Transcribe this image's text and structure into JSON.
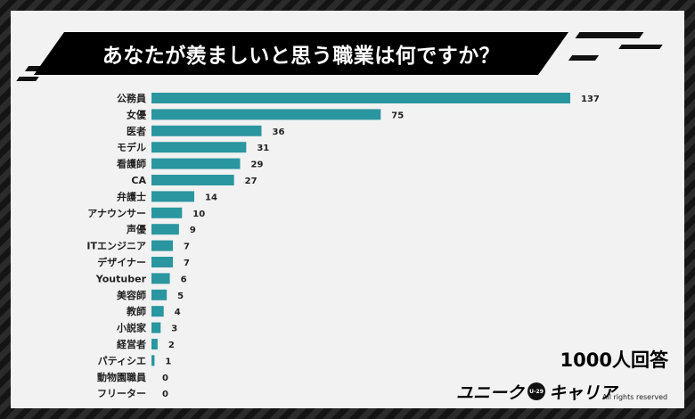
{
  "title": "あなたが羨ましいと思う職業は何ですか？",
  "note": "1000人回答",
  "logo": {
    "text_left": "ユニーク",
    "badge": "U-29",
    "text_right": "キャリア"
  },
  "rights": "All rights reserved",
  "colors": {
    "bar": "#2a969f",
    "banner": "#000000",
    "panel": "#f2f2f2"
  },
  "chart_data": {
    "type": "bar",
    "orientation": "horizontal",
    "title": "あなたが羨ましいと思う職業は何ですか？",
    "categories": [
      "公務員",
      "女優",
      "医者",
      "モデル",
      "看護師",
      "CA",
      "弁護士",
      "アナウンサー",
      "声優",
      "ITエンジニア",
      "デザイナー",
      "Youtuber",
      "美容師",
      "教師",
      "小説家",
      "経営者",
      "パティシエ",
      "動物園職員",
      "フリーター"
    ],
    "values": [
      137,
      75,
      36,
      31,
      29,
      27,
      14,
      10,
      9,
      7,
      7,
      6,
      5,
      4,
      3,
      2,
      1,
      0,
      0
    ],
    "xlim": [
      0,
      137
    ],
    "grid": false,
    "legend": "none"
  }
}
